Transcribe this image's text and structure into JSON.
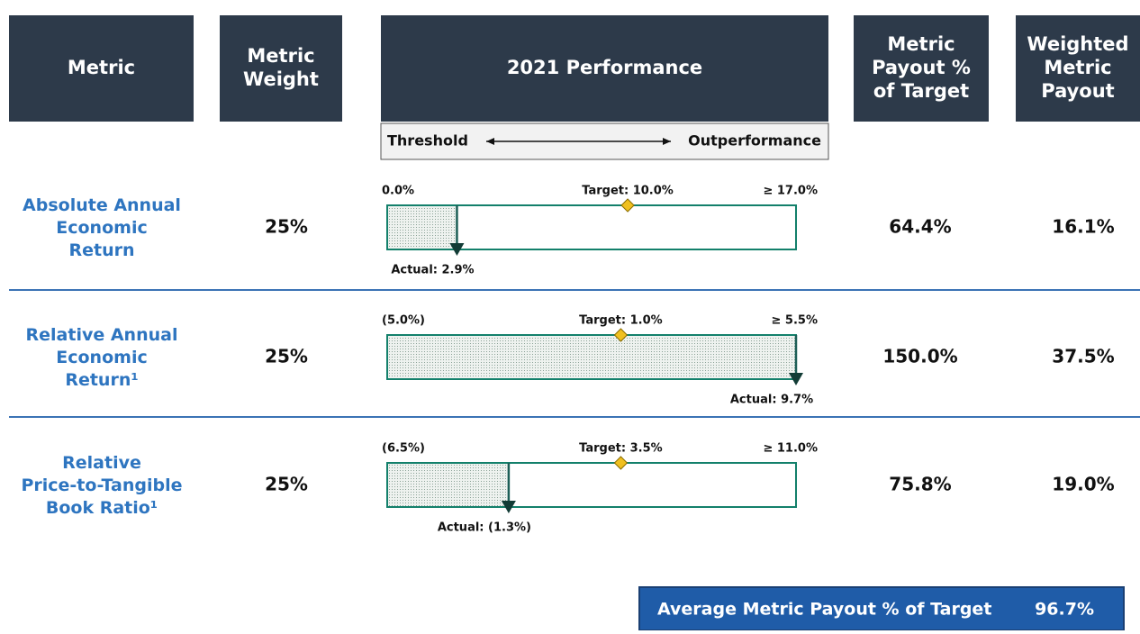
{
  "headers": [
    "Metric",
    "Metric Weight",
    "2021 Performance",
    "Metric Payout % of Target",
    "Weighted Metric Payout"
  ],
  "scale": {
    "left": "Threshold",
    "right": "Outperformance"
  },
  "rows": [
    {
      "metric": [
        "Absolute Annual",
        "Economic",
        "Return"
      ],
      "weight": "25%",
      "threshold": {
        "value": 0.0,
        "label": "0.0%"
      },
      "target": {
        "value": 10.0,
        "label": "Target: 10.0%"
      },
      "max": {
        "value": 17.0,
        "label": "≥ 17.0%"
      },
      "actual": {
        "value": 2.9,
        "label": "Actual: 2.9%"
      },
      "payout": "64.4%",
      "weighted": "16.1%"
    },
    {
      "metric": [
        "Relative Annual",
        "Economic",
        "Return¹"
      ],
      "weight": "25%",
      "threshold": {
        "value": -5.0,
        "label": "(5.0%)"
      },
      "target": {
        "value": 1.0,
        "label": "Target: 1.0%"
      },
      "max": {
        "value": 5.5,
        "label": "≥ 5.5%"
      },
      "actual": {
        "value": 9.7,
        "label": "Actual: 9.7%"
      },
      "payout": "150.0%",
      "weighted": "37.5%"
    },
    {
      "metric": [
        "Relative",
        "Price-to-Tangible",
        "Book Ratio¹"
      ],
      "weight": "25%",
      "threshold": {
        "value": -6.5,
        "label": "(6.5%)"
      },
      "target": {
        "value": 3.5,
        "label": "Target: 3.5%"
      },
      "max": {
        "value": 11.0,
        "label": "≥ 11.0%"
      },
      "actual": {
        "value": -1.3,
        "label": "Actual: (1.3%)"
      },
      "payout": "75.8%",
      "weighted": "19.0%"
    }
  ],
  "summary": {
    "label": "Average Metric Payout % of Target",
    "value": "96.7%"
  }
}
